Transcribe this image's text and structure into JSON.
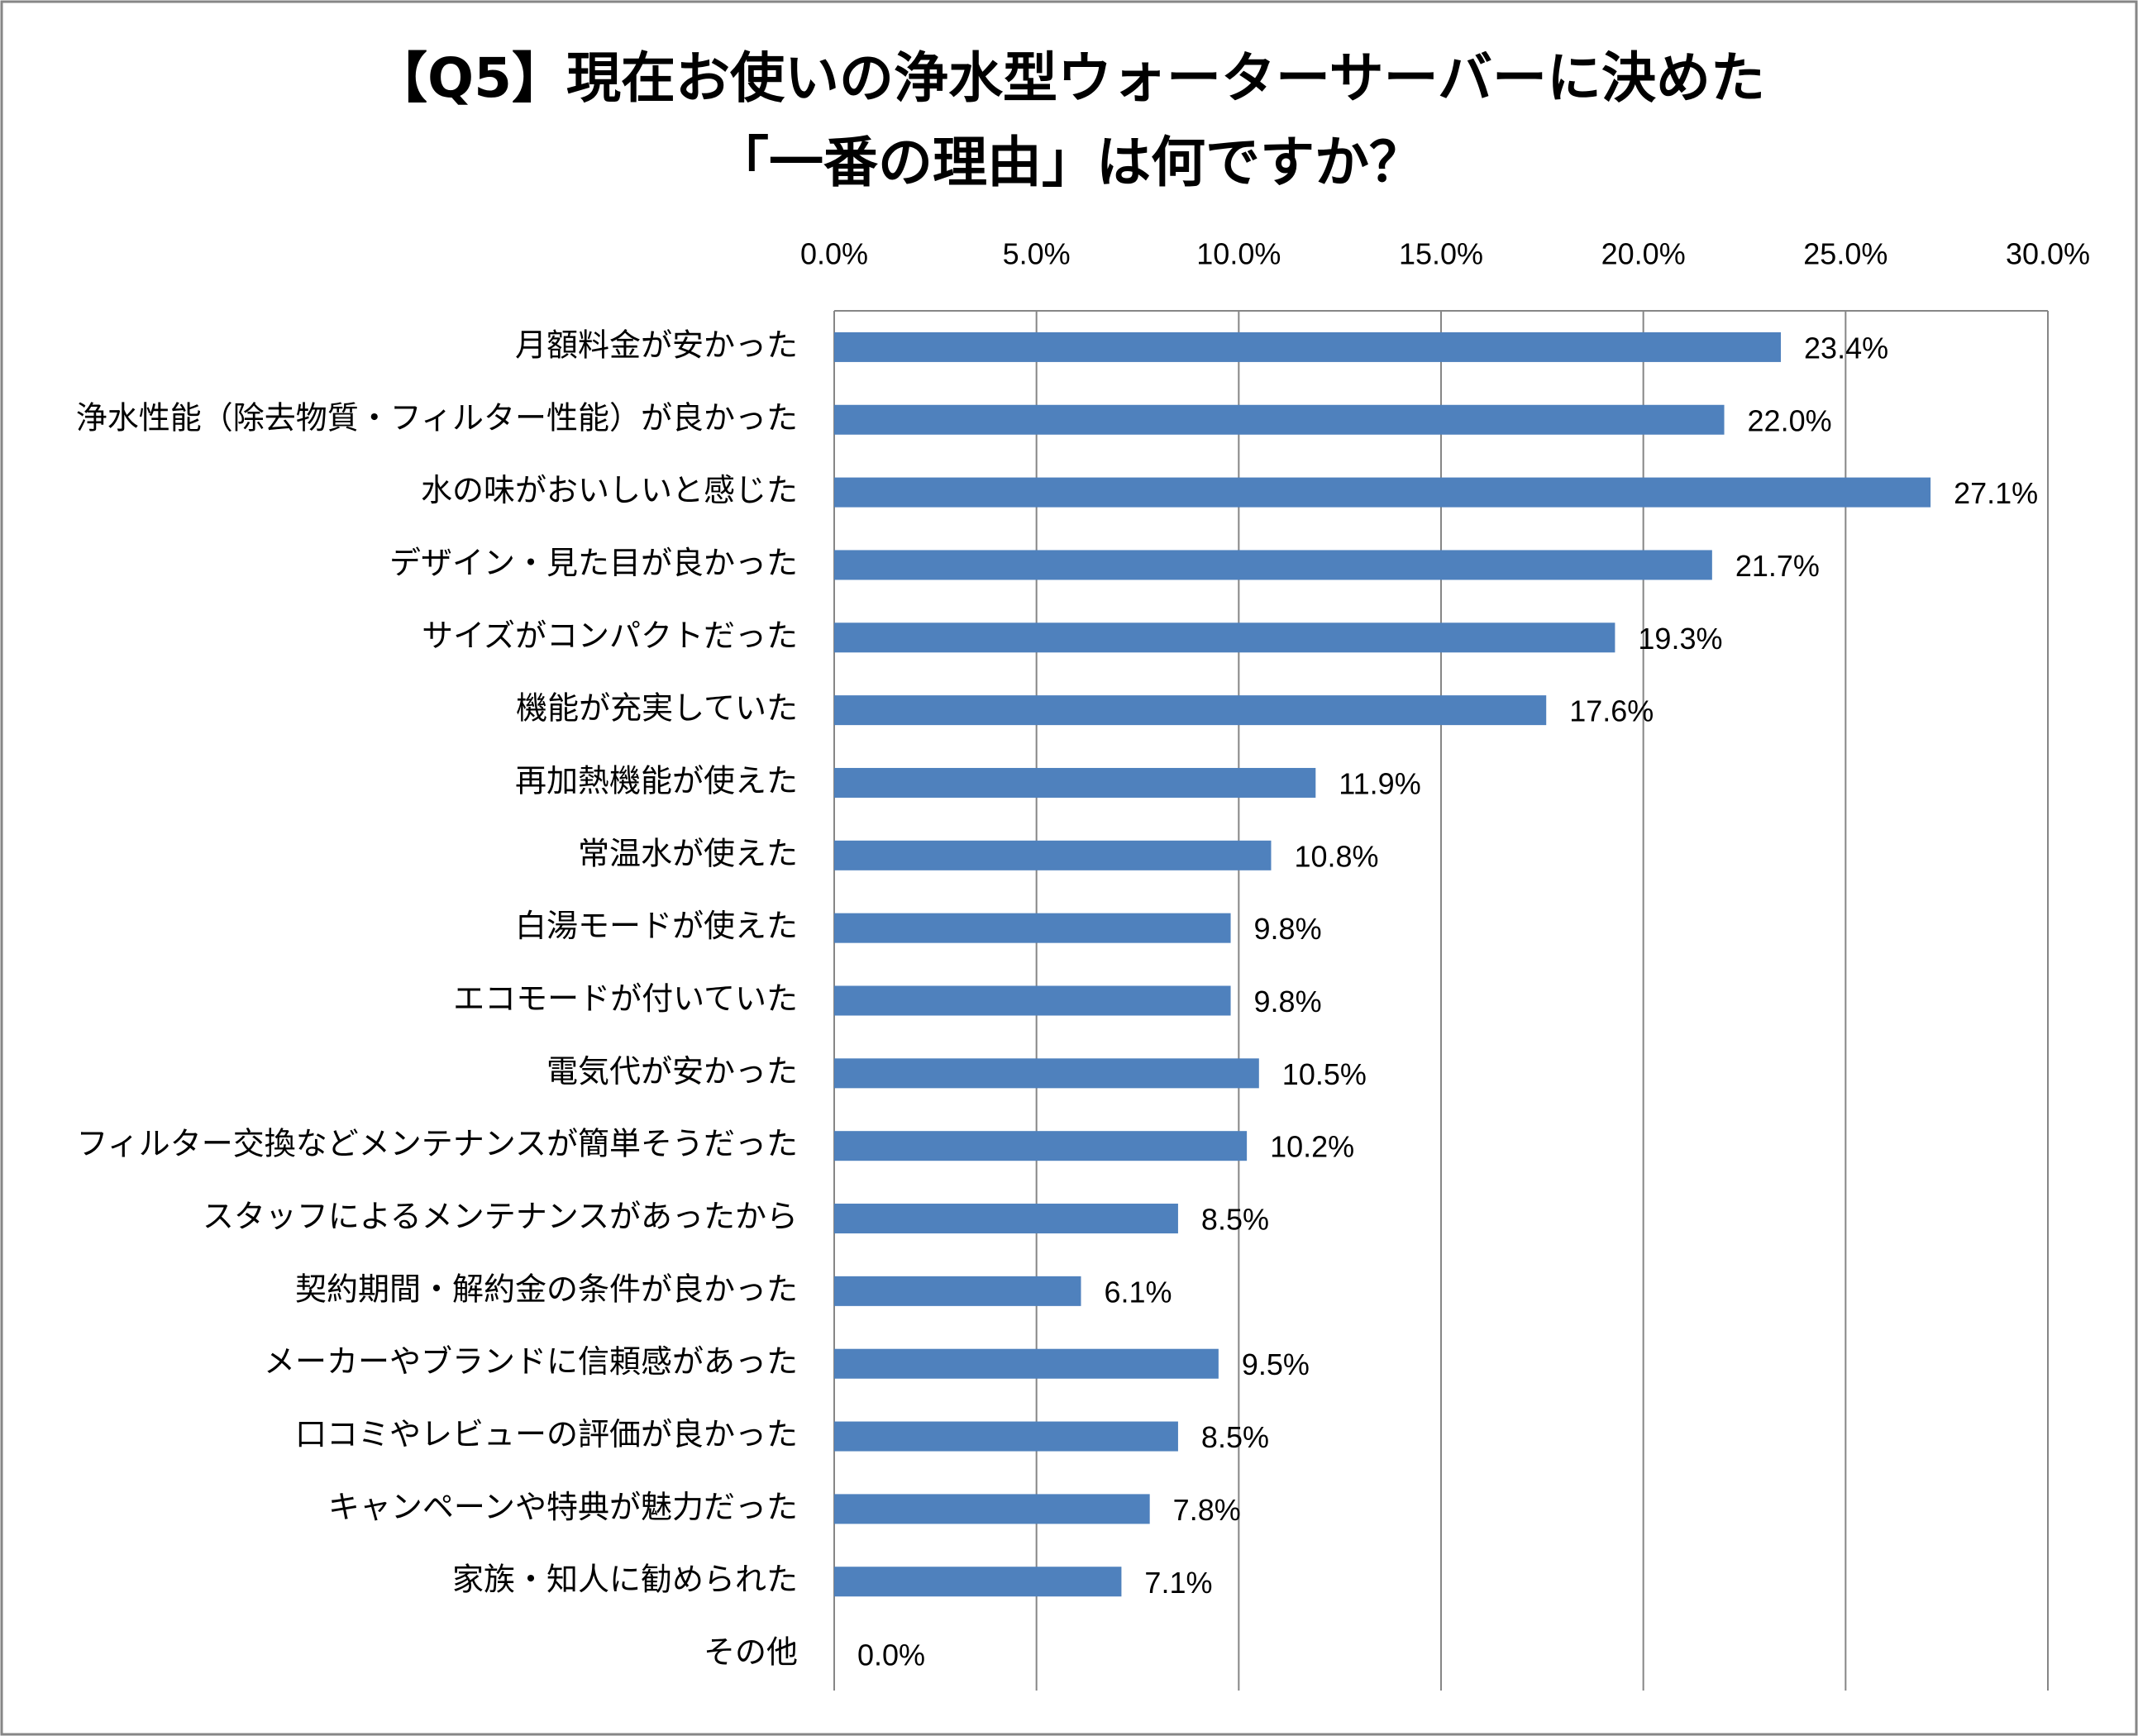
{
  "chart_data": {
    "type": "bar",
    "orientation": "horizontal",
    "title": [
      "【Q5】現在お使いの浄水型ウォーターサーバーに決めた",
      "「一番の理由」は何ですか？"
    ],
    "categories": [
      "月額料金が安かった",
      "浄水性能（除去物質・フィルター性能）が良かった",
      "水の味がおいしいと感じた",
      "デザイン・見た目が良かった",
      "サイズがコンパクトだった",
      "機能が充実していた",
      "再加熱機能が使えた",
      "常温水が使えた",
      "白湯モードが使えた",
      "エコモードが付いていた",
      "電気代が安かった",
      "フィルター交換などメンテナンスが簡単そうだった",
      "スタッフによるメンテナンスがあったから",
      "契約期間・解約金の条件が良かった",
      "メーカーやブランドに信頼感があった",
      "口コミやレビューの評価が良かった",
      "キャンペーンや特典が魅力だった",
      "家族・知人に勧められた",
      "その他"
    ],
    "values": [
      23.4,
      22.0,
      27.1,
      21.7,
      19.3,
      17.6,
      11.9,
      10.8,
      9.8,
      9.8,
      10.5,
      10.2,
      8.5,
      6.1,
      9.5,
      8.5,
      7.8,
      7.1,
      0.0
    ],
    "value_labels": [
      "23.4%",
      "22.0%",
      "27.1%",
      "21.7%",
      "19.3%",
      "17.6%",
      "11.9%",
      "10.8%",
      "9.8%",
      "9.8%",
      "10.5%",
      "10.2%",
      "8.5%",
      "6.1%",
      "9.5%",
      "8.5%",
      "7.8%",
      "7.1%",
      "0.0%"
    ],
    "color": "#4f81bd",
    "xlim": [
      0,
      30
    ],
    "xticks": [
      {
        "value": 0,
        "label": "0.0%"
      },
      {
        "value": 5,
        "label": "5.0%"
      },
      {
        "value": 10,
        "label": "10.0%"
      },
      {
        "value": 15,
        "label": "15.0%"
      },
      {
        "value": 20,
        "label": "20.0%"
      },
      {
        "value": 25,
        "label": "25.0%"
      },
      {
        "value": 30,
        "label": "30.0%"
      }
    ],
    "grid": true
  }
}
